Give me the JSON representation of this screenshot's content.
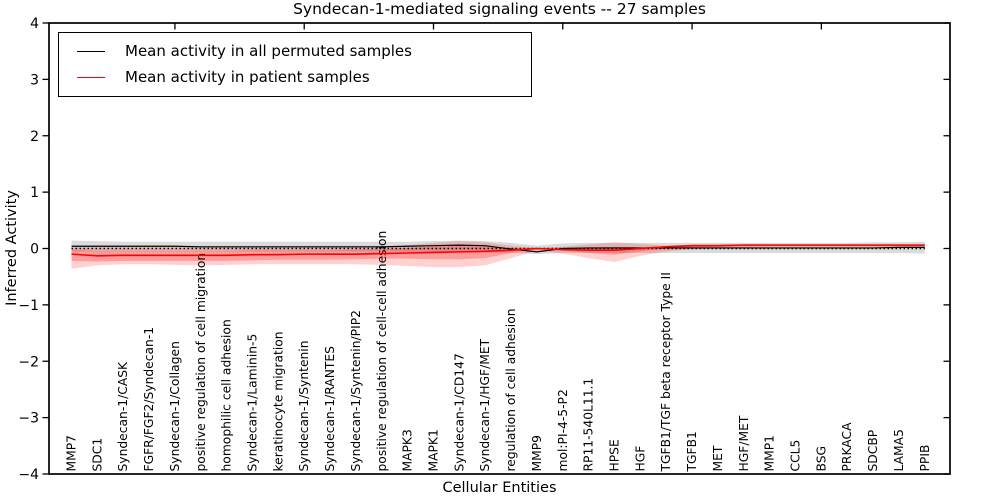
{
  "title": "Syndecan-1-mediated signaling events -- 27 samples",
  "xlabel": "Cellular Entities",
  "ylabel": "Inferred Activity",
  "legend": {
    "position": "upper left",
    "items": [
      {
        "label": "Mean activity in all permuted samples",
        "color": "#000000"
      },
      {
        "label": "Mean activity in patient samples",
        "color": "#ff0000"
      }
    ]
  },
  "chart_data": {
    "type": "line",
    "title": "Syndecan-1-mediated signaling events -- 27 samples",
    "xlabel": "Cellular Entities",
    "ylabel": "Inferred Activity",
    "ylim": [
      -4,
      4
    ],
    "yticks": [
      4,
      3,
      2,
      1,
      0,
      -1,
      -2,
      -3,
      -4
    ],
    "ytick_labels": [
      "4",
      "3",
      "2",
      "1",
      "0",
      "−1",
      "−2",
      "−3",
      "−4"
    ],
    "xtick_major_indices": [
      4,
      9,
      14,
      19,
      24,
      29
    ],
    "grid": false,
    "legend_position": "upper left",
    "categories": [
      "MMP7",
      "SDC1",
      "Syndecan-1/CASK",
      "FGFR/FGF2/Syndecan-1",
      "Syndecan-1/Collagen",
      "positive regulation of cell migration",
      "homophilic cell adhesion",
      "Syndecan-1/Laminin-5",
      "keratinocyte migration",
      "Syndecan-1/Syntenin",
      "Syndecan-1/RANTES",
      "Syndecan-1/Syntenin/PIP2",
      "positive regulation of cell-cell adhesion",
      "MAPK3",
      "MAPK1",
      "Syndecan-1/CD147",
      "Syndecan-1/HGF/MET",
      "regulation of cell adhesion",
      "MMP9",
      "mol:PI-4-5-P2",
      "RP11-540L11.1",
      "HPSE",
      "HGF",
      "TGFB1/TGF beta receptor Type II",
      "TGFB1",
      "MET",
      "HGF/MET",
      "MMP1",
      "CCL5",
      "BSG",
      "PRKACA",
      "SDCBP",
      "LAMA5",
      "PPIB"
    ],
    "series": [
      {
        "name": "Mean activity in all permuted samples",
        "color": "#000000",
        "width": 1.2,
        "values": [
          0.04,
          0.04,
          0.04,
          0.04,
          0.04,
          0.03,
          0.03,
          0.03,
          0.03,
          0.03,
          0.03,
          0.03,
          0.03,
          0.04,
          0.05,
          0.06,
          0.05,
          -0.01,
          -0.06,
          0.0,
          0.01,
          0.01,
          0.01,
          0.01,
          0.01,
          0.01,
          0.01,
          0.01,
          0.01,
          0.01,
          0.01,
          0.01,
          0.02,
          0.02
        ]
      },
      {
        "name": "Mean activity in patient samples",
        "color": "#ff0000",
        "width": 1.6,
        "values": [
          -0.1,
          -0.13,
          -0.12,
          -0.12,
          -0.12,
          -0.12,
          -0.12,
          -0.11,
          -0.11,
          -0.1,
          -0.1,
          -0.1,
          -0.09,
          -0.08,
          -0.07,
          -0.06,
          -0.05,
          -0.03,
          0.0,
          -0.02,
          -0.03,
          -0.03,
          0.0,
          0.03,
          0.05,
          0.05,
          0.06,
          0.06,
          0.06,
          0.06,
          0.06,
          0.06,
          0.06,
          0.06
        ]
      }
    ],
    "zero_reference_line": {
      "value": 0,
      "style": "dotted",
      "color": "#000000"
    },
    "bands": [
      {
        "name": "permuted-samples-band",
        "color": "#888888",
        "opacity": 0.3,
        "upper": [
          0.14,
          0.13,
          0.12,
          0.12,
          0.12,
          0.12,
          0.12,
          0.12,
          0.12,
          0.12,
          0.12,
          0.12,
          0.12,
          0.12,
          0.13,
          0.14,
          0.13,
          0.1,
          0.05,
          0.09,
          0.1,
          0.1,
          0.1,
          0.1,
          0.1,
          0.1,
          0.1,
          0.1,
          0.1,
          0.1,
          0.1,
          0.11,
          0.11,
          0.12
        ],
        "lower": [
          -0.05,
          -0.05,
          -0.05,
          -0.05,
          -0.05,
          -0.05,
          -0.05,
          -0.05,
          -0.05,
          -0.05,
          -0.05,
          -0.05,
          -0.05,
          -0.06,
          -0.06,
          -0.07,
          -0.07,
          -0.08,
          -0.1,
          -0.08,
          -0.08,
          -0.08,
          -0.08,
          -0.08,
          -0.08,
          -0.08,
          -0.08,
          -0.08,
          -0.08,
          -0.08,
          -0.08,
          -0.08,
          -0.08,
          -0.09
        ]
      },
      {
        "name": "patient-samples-outer-band",
        "color": "#ff0000",
        "opacity": 0.18,
        "upper": [
          0.02,
          0.02,
          0.02,
          0.02,
          0.02,
          0.02,
          0.02,
          0.02,
          0.02,
          0.02,
          0.03,
          0.03,
          0.04,
          0.06,
          0.1,
          0.13,
          0.11,
          0.05,
          0.01,
          0.03,
          0.07,
          0.11,
          0.08,
          0.05,
          0.07,
          0.07,
          0.08,
          0.08,
          0.08,
          0.08,
          0.08,
          0.08,
          0.08,
          0.08
        ],
        "lower": [
          -0.36,
          -0.3,
          -0.28,
          -0.28,
          -0.29,
          -0.3,
          -0.29,
          -0.28,
          -0.28,
          -0.28,
          -0.28,
          -0.28,
          -0.29,
          -0.31,
          -0.33,
          -0.33,
          -0.3,
          -0.17,
          -0.04,
          -0.09,
          -0.17,
          -0.24,
          -0.13,
          -0.05,
          -0.01,
          0.01,
          0.02,
          0.03,
          0.03,
          0.03,
          0.03,
          0.03,
          0.03,
          0.03
        ]
      },
      {
        "name": "patient-samples-inner-band",
        "color": "#ff0000",
        "opacity": 0.25,
        "upper": [
          -0.02,
          -0.04,
          -0.04,
          -0.04,
          -0.04,
          -0.04,
          -0.04,
          -0.03,
          -0.03,
          -0.03,
          -0.03,
          -0.02,
          -0.01,
          0.01,
          0.03,
          0.05,
          0.04,
          0.01,
          0.0,
          0.0,
          0.01,
          0.03,
          0.02,
          0.04,
          0.06,
          0.06,
          0.07,
          0.07,
          0.07,
          0.07,
          0.07,
          0.07,
          0.07,
          0.07
        ],
        "lower": [
          -0.22,
          -0.23,
          -0.22,
          -0.22,
          -0.22,
          -0.22,
          -0.22,
          -0.21,
          -0.2,
          -0.2,
          -0.2,
          -0.19,
          -0.18,
          -0.18,
          -0.19,
          -0.19,
          -0.17,
          -0.08,
          -0.01,
          -0.04,
          -0.08,
          -0.11,
          -0.05,
          0.0,
          0.02,
          0.03,
          0.04,
          0.04,
          0.04,
          0.04,
          0.04,
          0.04,
          0.04,
          0.04
        ]
      }
    ]
  }
}
